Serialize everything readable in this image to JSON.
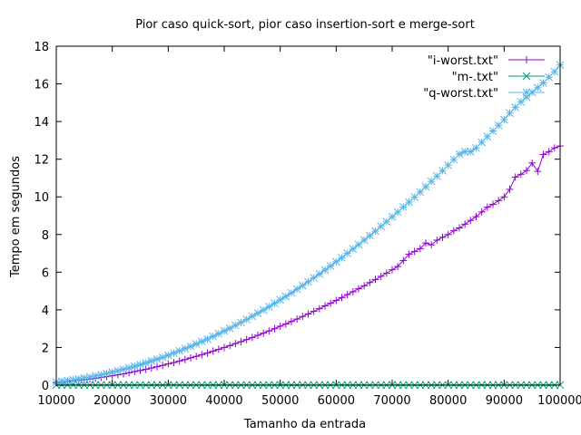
{
  "chart_data": {
    "type": "line",
    "title": "Pior caso quick-sort, pior caso insertion-sort e merge-sort",
    "xlabel": "Tamanho da entrada",
    "ylabel": "Tempo em segundos",
    "xlim": [
      10000,
      100000
    ],
    "ylim": [
      0,
      18
    ],
    "xticks": [
      10000,
      20000,
      30000,
      40000,
      50000,
      60000,
      70000,
      80000,
      90000,
      100000
    ],
    "yticks": [
      0,
      2,
      4,
      6,
      8,
      10,
      12,
      14,
      16,
      18
    ],
    "grid": false,
    "legend_position": "top-right",
    "x": [
      10000,
      11000,
      12000,
      13000,
      14000,
      15000,
      16000,
      17000,
      18000,
      19000,
      20000,
      21000,
      22000,
      23000,
      24000,
      25000,
      26000,
      27000,
      28000,
      29000,
      30000,
      31000,
      32000,
      33000,
      34000,
      35000,
      36000,
      37000,
      38000,
      39000,
      40000,
      41000,
      42000,
      43000,
      44000,
      45000,
      46000,
      47000,
      48000,
      49000,
      50000,
      51000,
      52000,
      53000,
      54000,
      55000,
      56000,
      57000,
      58000,
      59000,
      60000,
      61000,
      62000,
      63000,
      64000,
      65000,
      66000,
      67000,
      68000,
      69000,
      70000,
      71000,
      72000,
      73000,
      74000,
      75000,
      76000,
      77000,
      78000,
      79000,
      80000,
      81000,
      82000,
      83000,
      84000,
      85000,
      86000,
      87000,
      88000,
      89000,
      90000,
      91000,
      92000,
      93000,
      94000,
      95000,
      96000,
      97000,
      98000,
      99000,
      100000
    ],
    "series": [
      {
        "name": "\"i-worst.txt\"",
        "color": "#9400d3",
        "marker": "plus",
        "values": [
          0.13,
          0.15,
          0.18,
          0.21,
          0.25,
          0.28,
          0.32,
          0.36,
          0.41,
          0.45,
          0.5,
          0.55,
          0.6,
          0.66,
          0.72,
          0.78,
          0.84,
          0.91,
          0.98,
          1.05,
          1.13,
          1.2,
          1.28,
          1.36,
          1.45,
          1.53,
          1.62,
          1.71,
          1.81,
          1.9,
          2.0,
          2.1,
          2.21,
          2.31,
          2.42,
          2.53,
          2.65,
          2.76,
          2.88,
          3.0,
          3.13,
          3.25,
          3.38,
          3.51,
          3.65,
          3.78,
          3.92,
          4.06,
          4.21,
          4.35,
          4.5,
          4.65,
          4.81,
          4.96,
          5.12,
          5.28,
          5.45,
          5.61,
          5.78,
          5.95,
          6.13,
          6.3,
          6.62,
          6.95,
          7.1,
          7.25,
          7.55,
          7.45,
          7.7,
          7.85,
          8.0,
          8.2,
          8.35,
          8.55,
          8.75,
          8.95,
          9.2,
          9.45,
          9.6,
          9.8,
          10.0,
          10.4,
          11.05,
          11.2,
          11.4,
          11.8,
          11.35,
          12.25,
          12.4,
          12.6,
          12.7
        ]
      },
      {
        "name": "\"m-.txt\"",
        "color": "#009e73",
        "marker": "cross",
        "values": [
          0.01,
          0.01,
          0.01,
          0.01,
          0.01,
          0.01,
          0.01,
          0.01,
          0.01,
          0.01,
          0.01,
          0.01,
          0.01,
          0.01,
          0.01,
          0.01,
          0.01,
          0.01,
          0.01,
          0.01,
          0.01,
          0.01,
          0.01,
          0.01,
          0.01,
          0.01,
          0.01,
          0.01,
          0.01,
          0.01,
          0.01,
          0.01,
          0.01,
          0.01,
          0.01,
          0.01,
          0.01,
          0.01,
          0.01,
          0.01,
          0.01,
          0.01,
          0.01,
          0.01,
          0.01,
          0.01,
          0.01,
          0.01,
          0.01,
          0.01,
          0.01,
          0.01,
          0.01,
          0.01,
          0.01,
          0.01,
          0.01,
          0.01,
          0.01,
          0.01,
          0.01,
          0.01,
          0.01,
          0.01,
          0.01,
          0.01,
          0.01,
          0.01,
          0.01,
          0.01,
          0.01,
          0.01,
          0.01,
          0.01,
          0.01,
          0.01,
          0.01,
          0.01,
          0.01,
          0.01,
          0.01,
          0.01,
          0.01,
          0.01,
          0.01,
          0.01,
          0.01,
          0.01,
          0.01,
          0.01,
          0.01
        ]
      },
      {
        "name": "\"q-worst.txt\"",
        "color": "#56b4e9",
        "marker": "star",
        "values": [
          0.17,
          0.2,
          0.24,
          0.28,
          0.33,
          0.38,
          0.43,
          0.49,
          0.55,
          0.62,
          0.69,
          0.76,
          0.84,
          0.92,
          1.0,
          1.09,
          1.18,
          1.28,
          1.38,
          1.48,
          1.59,
          1.7,
          1.82,
          1.94,
          2.06,
          2.19,
          2.32,
          2.45,
          2.59,
          2.73,
          2.88,
          3.02,
          3.18,
          3.33,
          3.49,
          3.66,
          3.82,
          3.99,
          4.17,
          4.35,
          4.53,
          4.71,
          4.9,
          5.1,
          5.29,
          5.49,
          5.7,
          5.9,
          6.12,
          6.33,
          6.55,
          6.77,
          7.0,
          7.23,
          7.46,
          7.7,
          7.94,
          8.18,
          8.43,
          8.68,
          8.94,
          9.19,
          9.46,
          9.72,
          9.99,
          10.26,
          10.54,
          10.82,
          11.1,
          11.39,
          11.68,
          11.98,
          12.27,
          12.4,
          12.4,
          12.6,
          12.9,
          13.2,
          13.5,
          13.8,
          14.1,
          14.45,
          14.75,
          15.05,
          15.3,
          15.55,
          15.8,
          16.05,
          16.35,
          16.65,
          17.0
        ]
      }
    ]
  }
}
